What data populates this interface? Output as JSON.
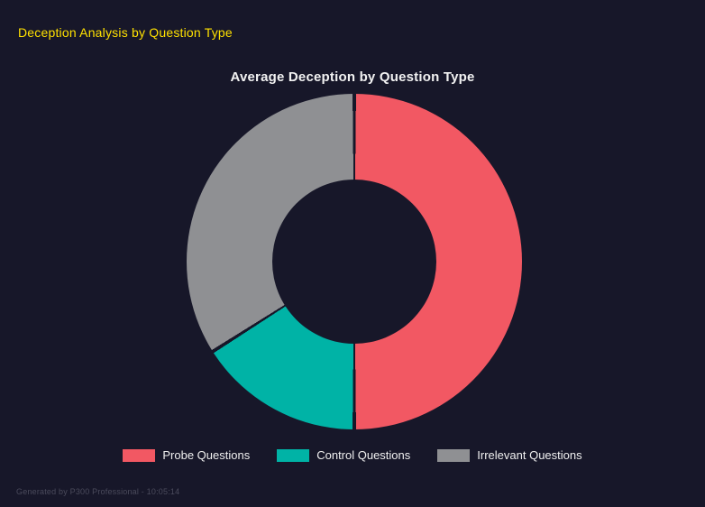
{
  "page": {
    "header": "Deception Analysis by Question Type",
    "footer": "Generated by P300 Professional - 10:05:14"
  },
  "chart_data": {
    "type": "pie",
    "donut": true,
    "title": "Average Deception by Question Type",
    "categories": [
      "Probe Questions",
      "Control Questions",
      "Irrelevant Questions"
    ],
    "values": [
      50,
      16,
      34
    ],
    "colors": [
      "#f25863",
      "#00b3a6",
      "#8f9093"
    ],
    "background": "#171729",
    "hole_ratio": 0.49,
    "legend_position": "bottom",
    "title_color": "#f2f2f2",
    "header_color": "#ffe100"
  }
}
